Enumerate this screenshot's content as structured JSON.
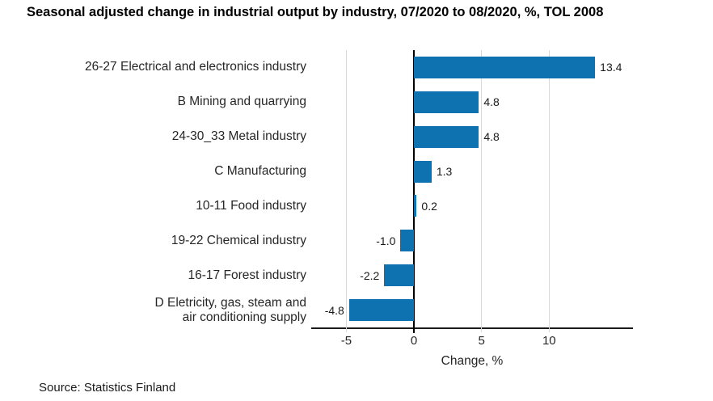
{
  "title": "Seasonal adjusted change in industrial output by industry, 07/2020 to 08/2020, %, TOL 2008",
  "source": "Source: Statistics Finland",
  "colors": {
    "bar": "#0f72b0",
    "gridline": "#d9d9d9",
    "zero_line": "#000000",
    "axis_line": "#1a1a1a",
    "text": "#262626"
  },
  "chart_data": {
    "type": "bar",
    "orientation": "horizontal",
    "title": "Seasonal adjusted change in industrial output by industry, 07/2020 to 08/2020, %, TOL 2008",
    "categories": [
      "26-27 Electrical and electronics industry",
      "B Mining and quarrying",
      "24-30_33 Metal industry",
      "C Manufacturing",
      "10-11 Food industry",
      "19-22 Chemical industry",
      "16-17 Forest industry",
      "D Eletricity, gas, steam and\nair conditioning supply"
    ],
    "values": [
      13.4,
      4.8,
      4.8,
      1.3,
      0.2,
      -1.0,
      -2.2,
      -4.8
    ],
    "value_labels": [
      "13.4",
      "4.8",
      "4.8",
      "1.3",
      "0.2",
      "-1.0",
      "-2.2",
      "-4.8"
    ],
    "xlabel": "Change, %",
    "ylabel": "",
    "xticks": [
      -5,
      0,
      5,
      10
    ],
    "xtick_labels": [
      "-5",
      "0",
      "5",
      "10"
    ],
    "xlim": [
      -7.6,
      16.2
    ],
    "grid": true,
    "legend": false,
    "bar_color": "#0f72b0",
    "source": "Source: Statistics Finland"
  }
}
